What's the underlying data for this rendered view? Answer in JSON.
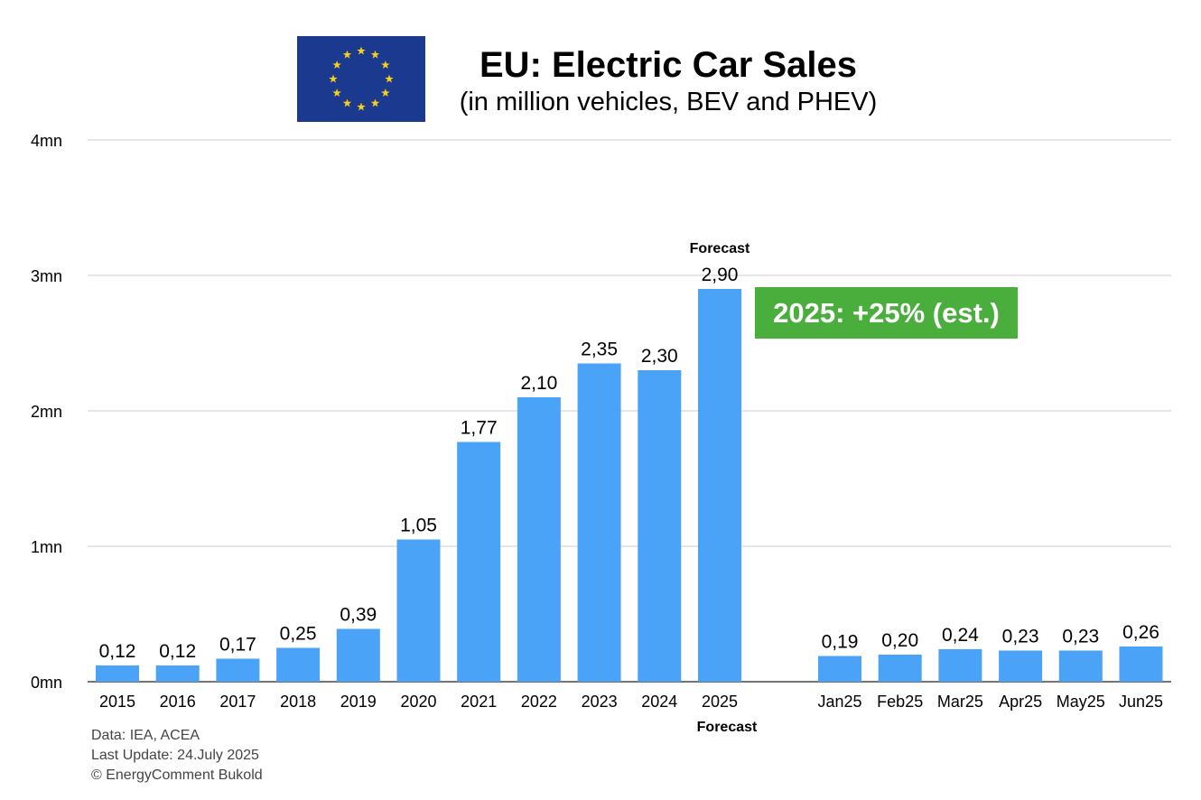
{
  "header": {
    "title": "EU: Electric Car Sales",
    "subtitle": "(in million vehicles, BEV and PHEV)"
  },
  "flag": {
    "name": "eu-flag",
    "background": "#1b3a8f",
    "star_color": "#f7d117"
  },
  "badge": {
    "text": "2025: +25% (est.)",
    "color": "#4aae3c"
  },
  "footer": {
    "source": "Data: IEA, ACEA",
    "update": "Last Update: 24.July 2025",
    "copyright": "© EnergyComment Bukold"
  },
  "chart_data": {
    "type": "bar",
    "title": "EU: Electric Car Sales",
    "subtitle": "(in million vehicles, BEV and PHEV)",
    "bar_color": "#4aa3f7",
    "grid": true,
    "ylim": [
      0,
      4
    ],
    "yticks": [
      {
        "value": 0,
        "label": "0mn"
      },
      {
        "value": 1,
        "label": "1mn"
      },
      {
        "value": 2,
        "label": "2mn"
      },
      {
        "value": 3,
        "label": "3mn"
      },
      {
        "value": 4,
        "label": "4mn"
      }
    ],
    "annual": {
      "categories": [
        "2015",
        "2016",
        "2017",
        "2018",
        "2019",
        "2020",
        "2021",
        "2022",
        "2023",
        "2024",
        "2025"
      ],
      "values": [
        0.12,
        0.12,
        0.17,
        0.25,
        0.39,
        1.05,
        1.77,
        2.1,
        2.35,
        2.3,
        2.9
      ],
      "labels": [
        "0,12",
        "0,12",
        "0,17",
        "0,25",
        "0,39",
        "1,05",
        "1,77",
        "2,10",
        "2,35",
        "2,30",
        "2,90"
      ]
    },
    "monthly": {
      "categories": [
        "Jan25",
        "Feb25",
        "Mar25",
        "Apr25",
        "May25",
        "Jun25"
      ],
      "values": [
        0.19,
        0.2,
        0.24,
        0.23,
        0.23,
        0.26
      ],
      "labels": [
        "0,19",
        "0,20",
        "0,24",
        "0,23",
        "0,23",
        "0,26"
      ]
    },
    "annotations": {
      "forecast_top": "Forecast",
      "forecast_bottom": "Forecast"
    }
  }
}
